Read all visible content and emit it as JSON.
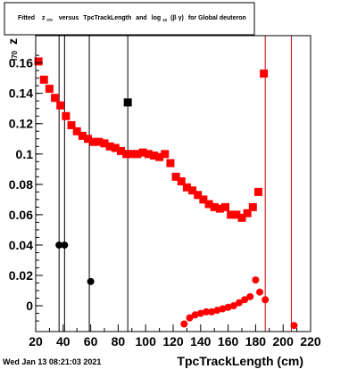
{
  "title_parts": {
    "fitted": "Fitted",
    "z": "z",
    "z_sub": "I70",
    "versus": "versus",
    "xvar": "TpcTrackLength",
    "and": "and",
    "log": "log",
    "log_sub": "10",
    "beta": "(β γ)",
    "suffix": "for Global deuteron"
  },
  "yaxis": {
    "symbol": "z",
    "subscript": "I70"
  },
  "timestamp": "Wed Jan 13 08:21:03 2021",
  "chart_data": {
    "type": "scatter",
    "title": "Fitted z_I70 versus TpcTrackLength and log_10(β γ) for Global deuteron",
    "xlabel": "TpcTrackLength (cm)",
    "ylabel": "z_I70",
    "xlim": [
      20,
      220
    ],
    "ylim": [
      -0.017,
      0.178
    ],
    "xticks": [
      20,
      40,
      60,
      80,
      100,
      120,
      140,
      160,
      180,
      200,
      220
    ],
    "xtick_labels": [
      "20",
      "40",
      "60",
      "80",
      "100",
      "120",
      "140",
      "160",
      "180",
      "200",
      "220"
    ],
    "yticks": [
      0,
      0.02,
      0.04,
      0.06,
      0.08,
      0.1,
      0.12,
      0.14,
      0.16
    ],
    "ytick_labels": [
      "0",
      "0.02",
      "0.04",
      "0.06",
      "0.08",
      "0.1",
      "0.12",
      "0.14",
      "0.16"
    ],
    "grid": false,
    "legend": "none",
    "series": [
      {
        "color": "#ff0000",
        "marker": "square",
        "points": [
          [
            22,
            0.161
          ],
          [
            26,
            0.149
          ],
          [
            30,
            0.143
          ],
          [
            34,
            0.137
          ],
          [
            38,
            0.132
          ],
          [
            42,
            0.125
          ],
          [
            46,
            0.119
          ],
          [
            50,
            0.115
          ],
          [
            54,
            0.112
          ],
          [
            58,
            0.11
          ],
          [
            62,
            0.108
          ],
          [
            66,
            0.108
          ],
          [
            70,
            0.107
          ],
          [
            74,
            0.105
          ],
          [
            78,
            0.104
          ],
          [
            82,
            0.102
          ],
          [
            86,
            0.1
          ],
          [
            90,
            0.1
          ],
          [
            94,
            0.1
          ],
          [
            98,
            0.101
          ],
          [
            102,
            0.1
          ],
          [
            106,
            0.099
          ],
          [
            110,
            0.098
          ],
          [
            114,
            0.1
          ],
          [
            118,
            0.094
          ],
          [
            122,
            0.085
          ],
          [
            126,
            0.082
          ],
          [
            130,
            0.078
          ],
          [
            134,
            0.076
          ],
          [
            138,
            0.073
          ],
          [
            142,
            0.07
          ],
          [
            146,
            0.067
          ],
          [
            150,
            0.065
          ],
          [
            154,
            0.064
          ],
          [
            158,
            0.065
          ],
          [
            162,
            0.06
          ],
          [
            166,
            0.06
          ],
          [
            170,
            0.058
          ],
          [
            174,
            0.061
          ],
          [
            178,
            0.065
          ],
          [
            182,
            0.075
          ],
          [
            186,
            0.153
          ]
        ]
      },
      {
        "color": "#ff0000",
        "marker": "circle",
        "points": [
          [
            128,
            -0.012
          ],
          [
            132,
            -0.008
          ],
          [
            136,
            -0.006
          ],
          [
            140,
            -0.005
          ],
          [
            144,
            -0.004
          ],
          [
            148,
            -0.004
          ],
          [
            152,
            -0.003
          ],
          [
            156,
            -0.002
          ],
          [
            160,
            -0.001
          ],
          [
            164,
            0.0
          ],
          [
            168,
            0.002
          ],
          [
            172,
            0.004
          ],
          [
            176,
            0.006
          ],
          [
            180,
            0.017
          ],
          [
            183,
            0.009
          ],
          [
            187,
            0.004
          ],
          [
            208,
            -0.013
          ]
        ]
      },
      {
        "color": "#000000",
        "marker": "circle",
        "points": [
          [
            37,
            0.04
          ],
          [
            41,
            0.04
          ],
          [
            60,
            0.016
          ]
        ]
      },
      {
        "color": "#000000",
        "marker": "square",
        "points": [
          [
            87,
            0.134
          ]
        ]
      }
    ],
    "vertical_lines": [
      {
        "x": 37,
        "color": "#000000"
      },
      {
        "x": 41,
        "color": "#000000"
      },
      {
        "x": 59,
        "color": "#000000"
      },
      {
        "x": 87,
        "color": "#000000"
      },
      {
        "x": 187,
        "color": "#cc0000"
      },
      {
        "x": 206,
        "color": "#cc0000"
      }
    ]
  }
}
